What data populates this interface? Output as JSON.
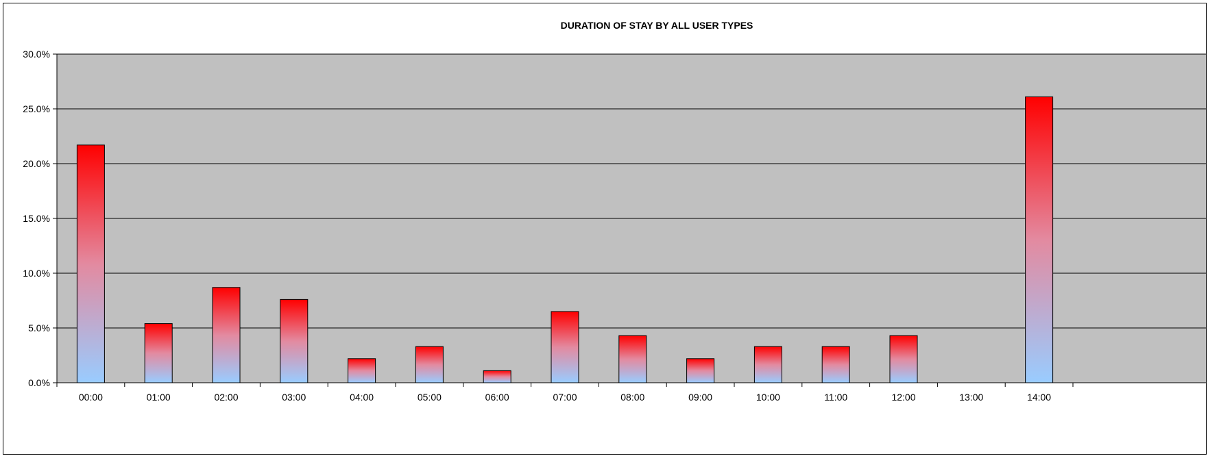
{
  "chart_data": {
    "type": "bar",
    "title": "DURATION OF STAY BY ALL USER TYPES",
    "xlabel": "",
    "ylabel": "",
    "categories": [
      "00:00",
      "01:00",
      "02:00",
      "03:00",
      "04:00",
      "05:00",
      "06:00",
      "07:00",
      "08:00",
      "09:00",
      "10:00",
      "11:00",
      "12:00",
      "13:00",
      "14:00"
    ],
    "values": [
      21.7,
      5.4,
      8.7,
      7.6,
      2.2,
      3.3,
      1.1,
      6.5,
      4.3,
      2.2,
      3.3,
      3.3,
      4.3,
      0,
      26.1
    ],
    "ylim": [
      0,
      30
    ],
    "yticks": [
      0,
      5,
      10,
      15,
      20,
      25,
      30
    ],
    "ytick_labels": [
      "0.0%",
      "5.0%",
      "10.0%",
      "15.0%",
      "20.0%",
      "25.0%",
      "30.0%"
    ],
    "grid": true,
    "legend": "none",
    "colors": {
      "plot_background": "#c0c0c0",
      "bar_top": "#ff0000",
      "bar_mid": "#e38aa0",
      "bar_bottom": "#99ccff",
      "gridline": "#000000"
    }
  }
}
